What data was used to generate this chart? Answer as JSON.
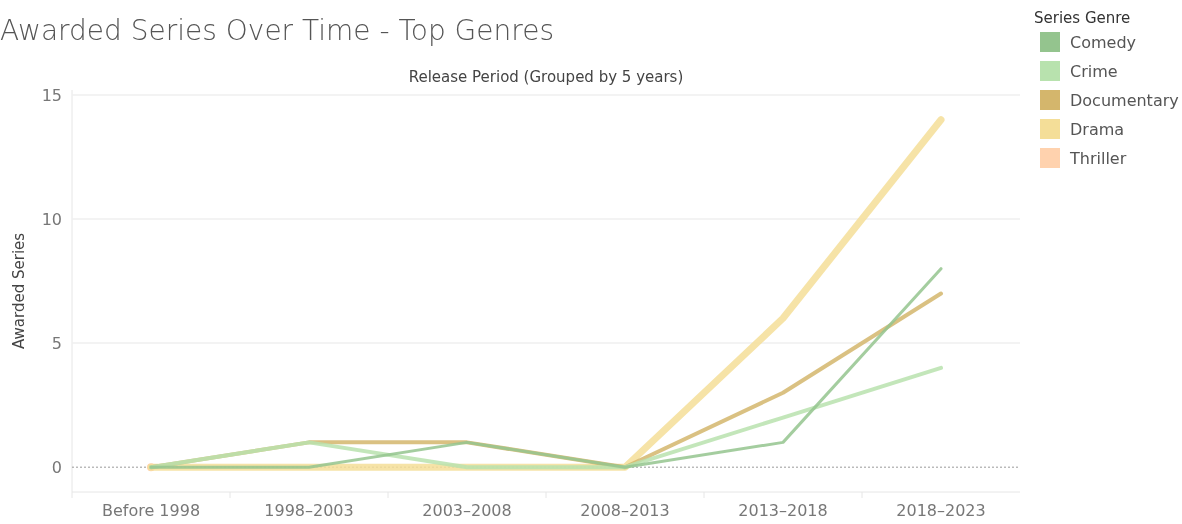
{
  "chart_data": {
    "type": "line",
    "title": "Awarded Series Over Time - Top Genres",
    "xlabel": "Release Period (Grouped by 5 years)",
    "ylabel": "Awarded Series",
    "legend_title": "Series Genre",
    "categories": [
      "Before 1998",
      "1998–2003",
      "2003–2008",
      "2008–2013",
      "2013–2018",
      "2018–2023"
    ],
    "series": [
      {
        "name": "Comedy",
        "color": "#94c48e",
        "values": [
          0,
          0,
          1,
          0,
          1,
          8
        ]
      },
      {
        "name": "Crime",
        "color": "#b8e2ae",
        "values": [
          0,
          1,
          0,
          0,
          2,
          4
        ]
      },
      {
        "name": "Documentary",
        "color": "#d4b66c",
        "values": [
          0,
          1,
          1,
          0,
          3,
          7
        ]
      },
      {
        "name": "Drama",
        "color": "#f4de98",
        "values": [
          0,
          0,
          0,
          0,
          6,
          14
        ]
      },
      {
        "name": "Thriller",
        "color": "#ffd2ae",
        "values": [
          0,
          null,
          null,
          null,
          null,
          null
        ],
        "marker": "circle"
      }
    ],
    "ylim": [
      -1,
      15.2
    ],
    "yticks": [
      0,
      5,
      10,
      15
    ],
    "ref_lines": [
      {
        "axis": "y",
        "value": 0,
        "color": "#999999",
        "line_style": "dotted"
      }
    ],
    "grid": "y",
    "legend": "top right"
  }
}
